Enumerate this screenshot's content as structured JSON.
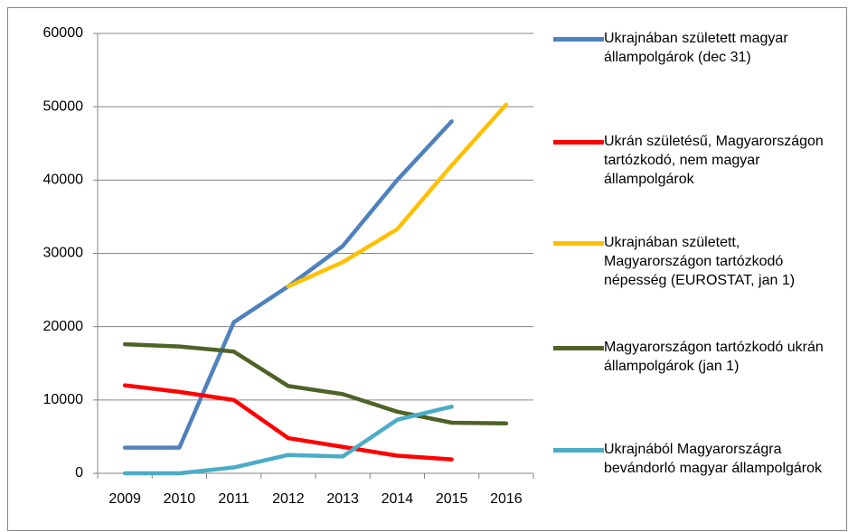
{
  "chart_data": {
    "type": "line",
    "categories": [
      "2009",
      "2010",
      "2011",
      "2012",
      "2013",
      "2014",
      "2015",
      "2016"
    ],
    "series": [
      {
        "name": "Ukrajnában született magyar állampolgárok (dec 31)",
        "color": "#4f81bd",
        "values": [
          3500,
          3500,
          20600,
          25500,
          31000,
          40000,
          48000,
          null
        ]
      },
      {
        "name": "Ukrán születésű, Magyarországon tartózkodó, nem magyar állampolgárok",
        "color": "#ff0000",
        "values": [
          12000,
          11100,
          10000,
          4800,
          3600,
          2400,
          1900,
          null
        ]
      },
      {
        "name": "Ukrajnában született, Magyarországon tartózkodó népesség (EUROSTAT, jan 1)",
        "color": "#ffc000",
        "values": [
          null,
          null,
          null,
          25500,
          28800,
          33300,
          42000,
          50300
        ]
      },
      {
        "name": "Magyarországon tartózkodó ukrán állampolgárok  (jan 1)",
        "color": "#4f6228",
        "values": [
          17600,
          17300,
          16600,
          11900,
          10800,
          8400,
          6900,
          6800
        ]
      },
      {
        "name": "Ukrajnából Magyarországra bevándorló magyar állampolgárok",
        "color": "#4bacc6",
        "values": [
          0,
          0,
          800,
          2500,
          2300,
          7300,
          9100,
          null
        ]
      }
    ],
    "ylim": [
      0,
      60000
    ],
    "yticks": [
      0,
      10000,
      20000,
      30000,
      40000,
      50000,
      60000
    ],
    "grid": true,
    "legend": "right"
  }
}
